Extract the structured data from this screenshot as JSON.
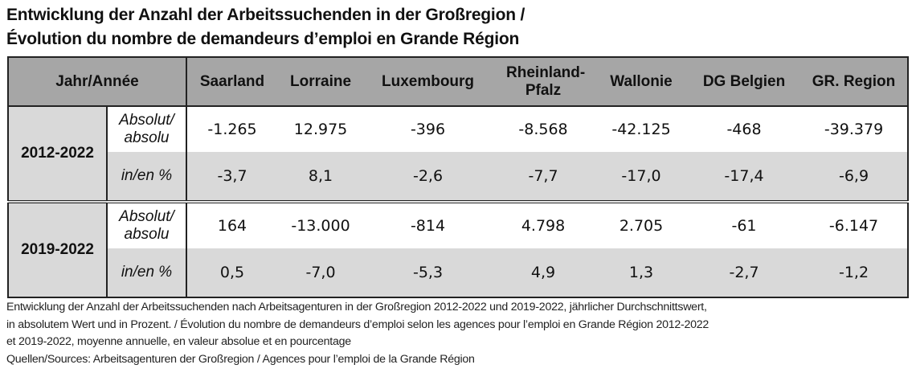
{
  "title": {
    "line1": "Entwicklung der Anzahl der Arbeitssuchenden in der Großregion /",
    "line2": "Évolution du nombre de demandeurs d’emploi en Grande Région"
  },
  "table": {
    "corner_header": "Jahr/Année",
    "columns": [
      "Saarland",
      "Lorraine",
      "Luxembourg",
      "Rheinland-Pfalz",
      "Wallonie",
      "DG Belgien",
      "GR. Region"
    ],
    "groups": [
      {
        "period": "2012-2022",
        "rows": [
          {
            "label": "Absolut/ absolu",
            "values": [
              "-1.265",
              "12.975",
              "-396",
              "-8.568",
              "-42.125",
              "-468",
              "-39.379"
            ]
          },
          {
            "label": "in/en %",
            "values": [
              "-3,7",
              "8,1",
              "-2,6",
              "-7,7",
              "-17,0",
              "-17,4",
              "-6,9"
            ]
          }
        ]
      },
      {
        "period": "2019-2022",
        "rows": [
          {
            "label": "Absolut/ absolu",
            "values": [
              "164",
              "-13.000",
              "-814",
              "4.798",
              "2.705",
              "-61",
              "-6.147"
            ]
          },
          {
            "label": "in/en %",
            "values": [
              "0,5",
              "-7,0",
              "-5,3",
              "4,9",
              "1,3",
              "-2,7",
              "-1,2"
            ]
          }
        ]
      }
    ]
  },
  "footer": {
    "line1": "Entwicklung der Anzahl der Arbeitssuchenden nach Arbeitsagenturen in der Großregion 2012-2022 und 2019-2022, jährlicher Durchschnittswert,",
    "line2": "in absolutem Wert und in Prozent. / Évolution du nombre de demandeurs d’emploi selon les agences pour l’emploi en Grande Région 2012-2022",
    "line3": "et 2019-2022, moyenne annuelle, en valeur absolue et en pourcentage",
    "line4": "Quellen/Sources: Arbeitsagenturen der Großregion / Agences pour l’emploi de la Grande Région"
  },
  "colors": {
    "header_bg": "#a6a6a6",
    "shaded_bg": "#d9d9d9",
    "border": "#222222"
  }
}
